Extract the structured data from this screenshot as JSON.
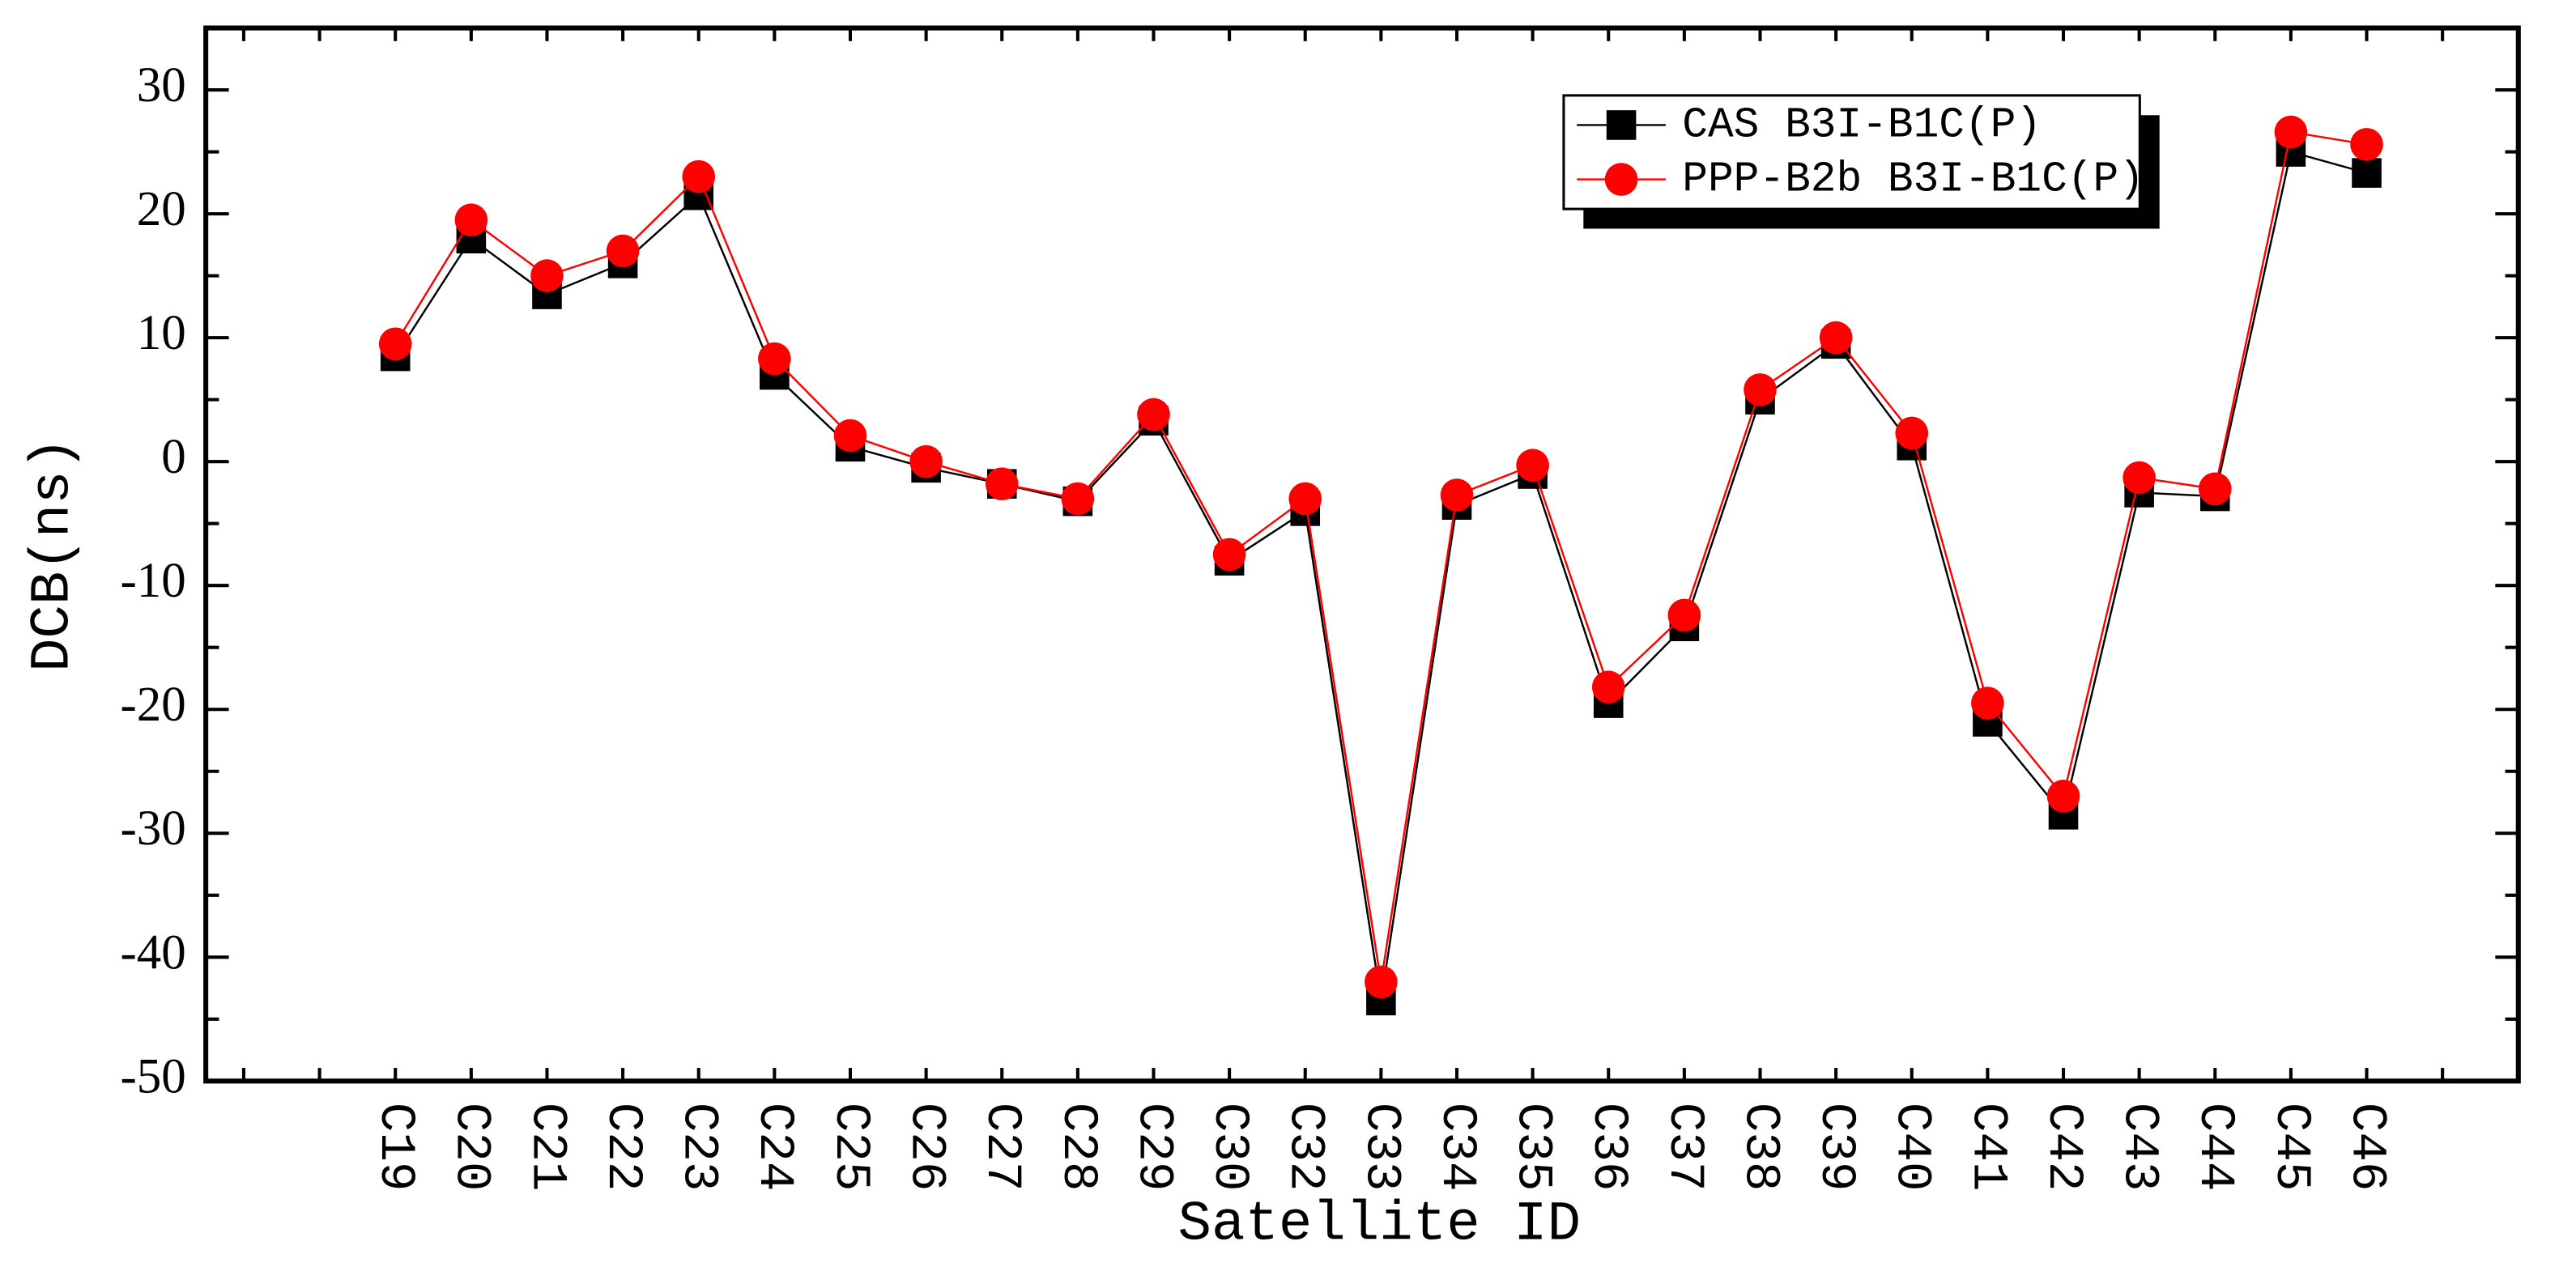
{
  "chart_data": {
    "type": "line",
    "x_label": "Satellite ID",
    "y_label": "DCB(ns)",
    "categories": [
      "C19",
      "C20",
      "C21",
      "C22",
      "C23",
      "C24",
      "C25",
      "C26",
      "C27",
      "C28",
      "C29",
      "C30",
      "C32",
      "C33",
      "C34",
      "C35",
      "C36",
      "C37",
      "C38",
      "C39",
      "C40",
      "C41",
      "C42",
      "C43",
      "C44",
      "C45",
      "C46"
    ],
    "series": [
      {
        "name": "CAS B3I-B1C(P)",
        "color": "#000000",
        "marker": "square",
        "values": [
          8.5,
          18,
          13.5,
          16,
          21.5,
          7,
          1.2,
          -0.5,
          -1.8,
          -3.2,
          3.3,
          -8,
          -4,
          -43.5,
          -3.5,
          -1,
          -19.5,
          -13.3,
          5,
          9.5,
          1.3,
          -21,
          -28.5,
          -2.5,
          -2.8,
          25,
          23.3
        ]
      },
      {
        "name": "PPP-B2b B3I-B1C(P)",
        "color": "#ff0000",
        "marker": "circle",
        "values": [
          9.5,
          19.5,
          15,
          17,
          23,
          8.3,
          2.1,
          0,
          -1.8,
          -3,
          3.8,
          -7.5,
          -3,
          -42,
          -2.7,
          -0.3,
          -18.2,
          -12.4,
          5.8,
          10,
          2.3,
          -19.5,
          -27,
          -1.3,
          -2.2,
          26.6,
          25.6
        ]
      }
    ],
    "ylim": [
      -50,
      35
    ],
    "yticks": [
      -50,
      -40,
      -30,
      -20,
      -10,
      0,
      10,
      20,
      30
    ],
    "legend": "upper right"
  }
}
